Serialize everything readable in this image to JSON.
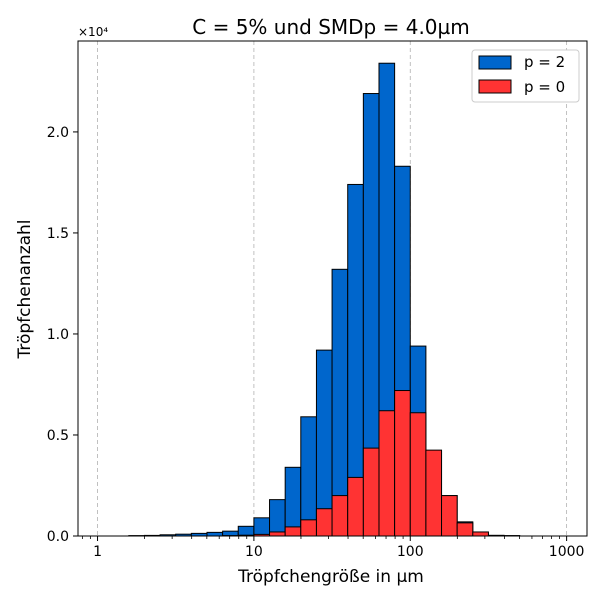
{
  "chart_data": {
    "type": "bar",
    "title": "C = 5% und SMDp = 4.0µm",
    "xlabel": "Tröpfchengröße in µm",
    "ylabel": "Tröpfchenanzahl",
    "x_scale": "log",
    "xlim": [
      0.75,
      1350
    ],
    "ylim": [
      0,
      24500
    ],
    "y_offset_label": "×10⁴",
    "x_ticks": [
      {
        "value": 1,
        "label": "1"
      },
      {
        "value": 10,
        "label": "10"
      },
      {
        "value": 100,
        "label": "100"
      },
      {
        "value": 1000,
        "label": "1000"
      }
    ],
    "y_ticks": [
      {
        "value": 0,
        "label": "0.0"
      },
      {
        "value": 5000,
        "label": "0.5"
      },
      {
        "value": 10000,
        "label": "1.0"
      },
      {
        "value": 15000,
        "label": "1.5"
      },
      {
        "value": 20000,
        "label": "2.0"
      }
    ],
    "grid": "vertical dashed at decades",
    "legend_position": "top-right",
    "bin_edges": [
      1.0,
      1.259,
      1.585,
      1.995,
      2.512,
      3.162,
      3.981,
      5.012,
      6.31,
      7.943,
      10.0,
      12.59,
      15.85,
      19.95,
      25.12,
      31.62,
      39.81,
      50.12,
      63.1,
      79.43,
      100.0,
      125.9,
      158.5,
      199.5,
      251.2,
      316.2,
      398.1,
      501.2,
      631.0,
      794.3,
      1000.0
    ],
    "series": [
      {
        "name": "p = 2",
        "color": "#0066cc",
        "values": [
          0,
          0,
          20,
          30,
          60,
          90,
          130,
          180,
          240,
          480,
          900,
          1800,
          3400,
          5900,
          9200,
          13200,
          17400,
          21900,
          23400,
          18300,
          9400,
          4200,
          2000,
          700,
          150,
          30,
          20,
          0,
          0,
          0
        ]
      },
      {
        "name": "p = 0",
        "color": "#ff3333",
        "values": [
          0,
          0,
          0,
          0,
          0,
          0,
          0,
          0,
          20,
          40,
          80,
          200,
          450,
          800,
          1350,
          2000,
          2900,
          4350,
          6200,
          7200,
          6100,
          4250,
          2000,
          650,
          200,
          30,
          10,
          0,
          0,
          0
        ]
      }
    ]
  }
}
